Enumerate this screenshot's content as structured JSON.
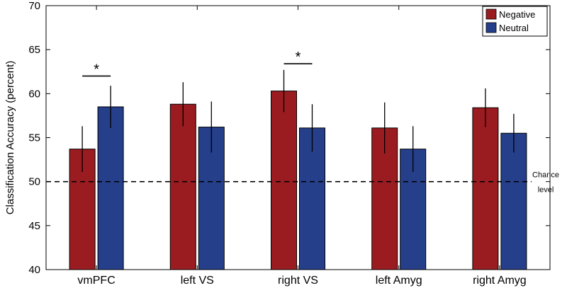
{
  "chart_data": {
    "type": "bar",
    "title": "",
    "xlabel": "",
    "ylabel": "Classification Accuracy (percent)",
    "ylim": [
      40,
      70
    ],
    "yticks": [
      40,
      45,
      50,
      55,
      60,
      65,
      70
    ],
    "grid": false,
    "legend_position": "top-right",
    "categories": [
      "vmPFC",
      "left VS",
      "right VS",
      "left Amyg",
      "right Amyg"
    ],
    "series": [
      {
        "name": "Negative",
        "color": "#9b1c20",
        "values": [
          53.7,
          58.8,
          60.3,
          56.1,
          58.4
        ],
        "errors": [
          2.6,
          2.5,
          2.4,
          2.9,
          2.2
        ]
      },
      {
        "name": "Neutral",
        "color": "#263f8a",
        "values": [
          58.5,
          56.2,
          56.1,
          53.7,
          55.5
        ],
        "errors": [
          2.4,
          2.9,
          2.7,
          2.6,
          2.2
        ]
      }
    ],
    "reference_line": {
      "value": 50,
      "label_line1": "Chance",
      "label_line2": "level",
      "style": "dashed"
    },
    "significance": [
      {
        "category_index": 0,
        "y_value": 62.0,
        "label": "*"
      },
      {
        "category_index": 2,
        "y_value": 63.4,
        "label": "*"
      }
    ]
  }
}
